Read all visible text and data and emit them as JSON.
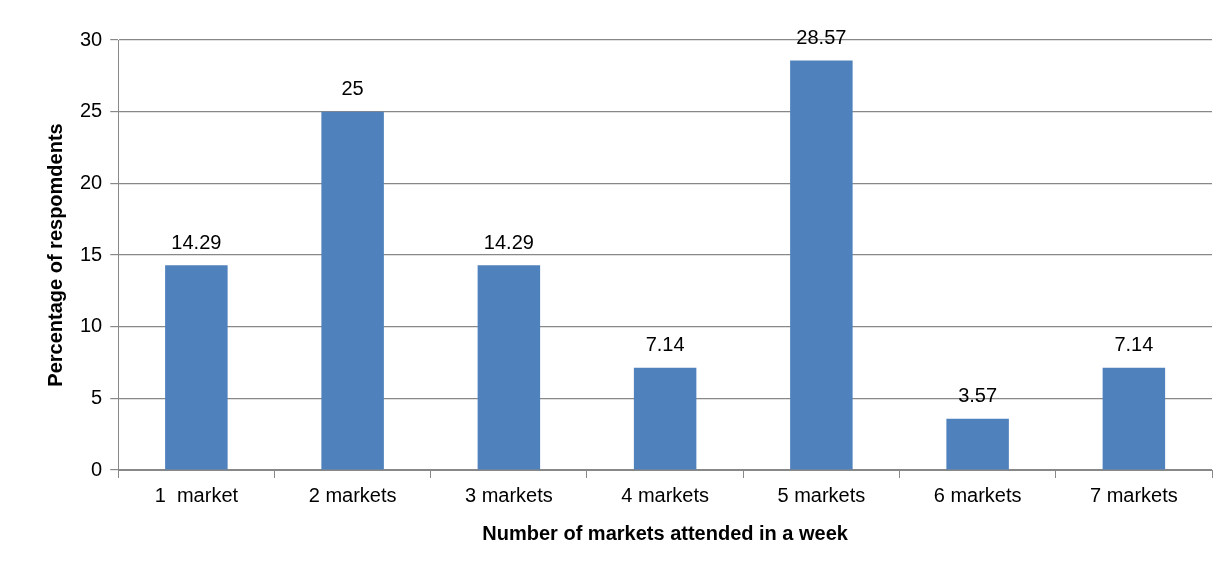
{
  "chart_data": {
    "type": "bar",
    "xlabel": "Number of markets attended in a week",
    "ylabel": "Percentage of respomdents",
    "categories": [
      "1  market",
      "2 markets",
      "3 markets",
      "4 markets",
      "5 markets",
      "6 markets",
      "7 markets"
    ],
    "values": [
      14.29,
      25,
      14.29,
      7.14,
      28.57,
      3.57,
      7.14
    ],
    "color": "#4f81bd",
    "ylim": [
      0,
      30
    ],
    "yticks": [
      0,
      5,
      10,
      15,
      20,
      25,
      30
    ],
    "grid": "y",
    "data_labels": true,
    "legend": false
  }
}
